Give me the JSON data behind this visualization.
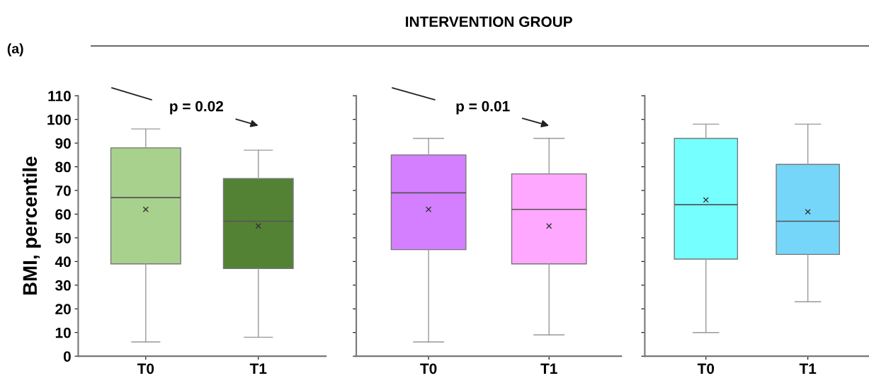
{
  "chart_data": [
    {
      "type": "box",
      "ylabel": "BMI, percentile",
      "annotations": [
        "(a)",
        "p = 0.02"
      ],
      "categories": [
        "T0",
        "T1"
      ],
      "colors": [
        "#a9d18e",
        "#548235"
      ],
      "marker": "cross",
      "boxes": [
        {
          "low": 6,
          "q1": 39,
          "median": 67,
          "q3": 88,
          "high": 96,
          "mean": 62
        },
        {
          "low": 8,
          "q1": 37,
          "median": 57,
          "q3": 75,
          "high": 87,
          "mean": 55
        }
      ],
      "ylim": [
        0,
        110
      ],
      "yticks": [
        0,
        10,
        20,
        30,
        40,
        50,
        60,
        70,
        80,
        90,
        100,
        110
      ],
      "grid": false
    },
    {
      "type": "box",
      "title": "INTERVENTION GROUP",
      "annotations": [
        "p = 0.01"
      ],
      "categories": [
        "T0",
        "T1"
      ],
      "colors": [
        "#d47fff",
        "#ffa8ff"
      ],
      "marker": "cross",
      "boxes": [
        {
          "low": 6,
          "q1": 45,
          "median": 69,
          "q3": 85,
          "high": 92,
          "mean": 62
        },
        {
          "low": 9,
          "q1": 39,
          "median": 62,
          "q3": 77,
          "high": 92,
          "mean": 55
        }
      ],
      "ylim": [
        0,
        110
      ],
      "yticks": [
        0,
        10,
        20,
        30,
        40,
        50,
        60,
        70,
        80,
        90,
        100,
        110
      ],
      "tick_labels": "x",
      "grid": false
    },
    {
      "type": "box",
      "categories": [
        "T0",
        "T1"
      ],
      "colors": [
        "#75ffff",
        "#75d6fa"
      ],
      "marker": "cross",
      "boxes": [
        {
          "low": 10,
          "q1": 41,
          "median": 64,
          "q3": 92,
          "high": 98,
          "mean": 66
        },
        {
          "low": 23,
          "q1": 43,
          "median": 57,
          "q3": 81,
          "high": 98,
          "mean": 61
        }
      ],
      "ylim": [
        0,
        110
      ],
      "yticks": [
        0,
        10,
        20,
        30,
        40,
        50,
        60,
        70,
        80,
        90,
        100,
        110
      ],
      "tick_labels": "x",
      "grid": false
    }
  ]
}
